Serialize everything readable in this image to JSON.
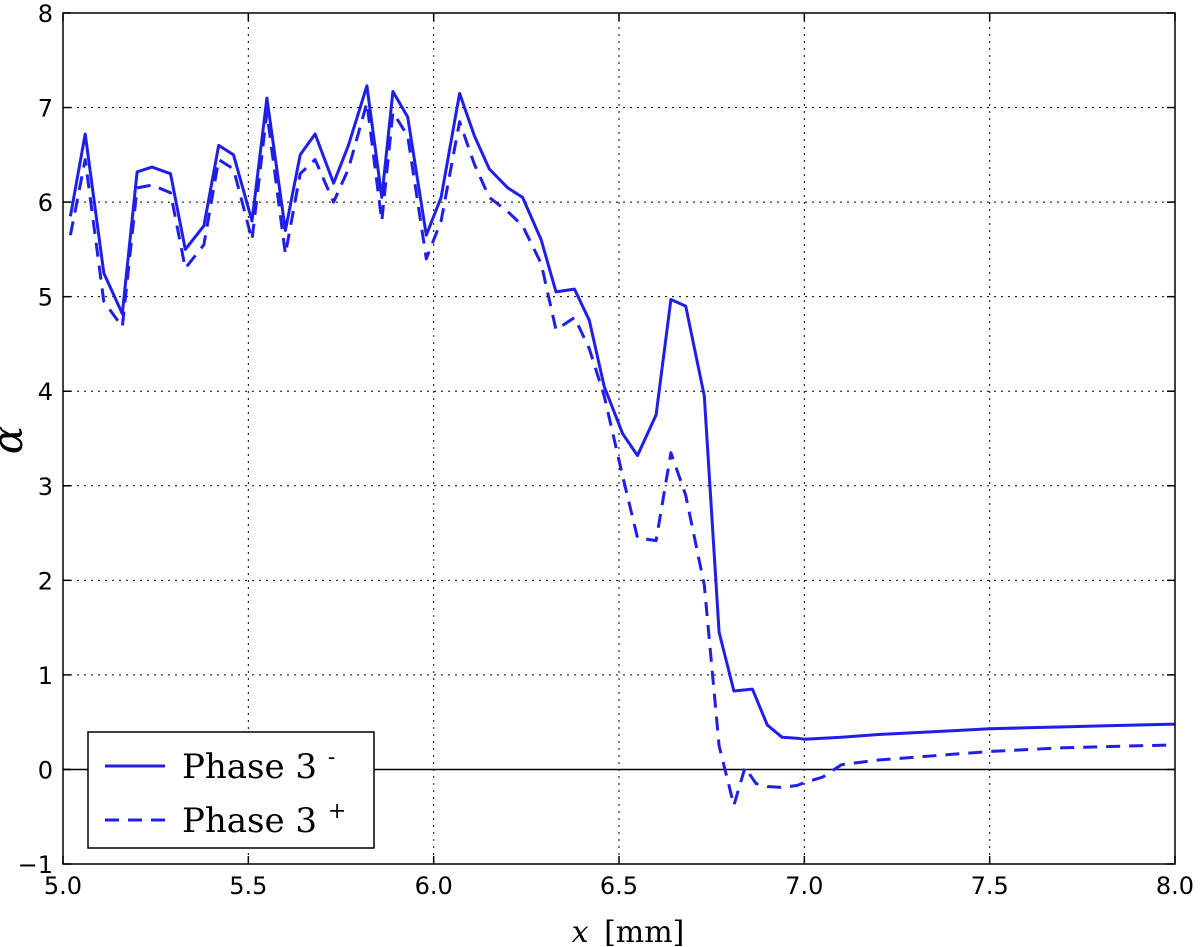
{
  "chart_data": {
    "type": "line",
    "xlabel_var": "x",
    "xlabel_unit": "[mm]",
    "ylabel": "α",
    "xlim": [
      5.0,
      8.0
    ],
    "ylim": [
      -1,
      8
    ],
    "xticks": [
      "5.0",
      "5.5",
      "6.0",
      "6.5",
      "7.0",
      "7.5",
      "8.0"
    ],
    "yticks": [
      "−1",
      "0",
      "1",
      "2",
      "3",
      "4",
      "5",
      "6",
      "7",
      "8"
    ],
    "grid": true,
    "legend_position": "lower-left",
    "reference_line_y": 0,
    "colors": {
      "series": "#1f1fe8",
      "axis": "#000000",
      "grid": "#000000"
    },
    "series": [
      {
        "name_base": "Phase 3",
        "name_sup": "-",
        "style": "solid",
        "x": [
          5.02,
          5.06,
          5.11,
          5.16,
          5.2,
          5.24,
          5.29,
          5.33,
          5.38,
          5.42,
          5.46,
          5.51,
          5.55,
          5.6,
          5.64,
          5.68,
          5.73,
          5.77,
          5.82,
          5.86,
          5.89,
          5.93,
          5.98,
          6.02,
          6.07,
          6.11,
          6.15,
          6.2,
          6.24,
          6.29,
          6.33,
          6.38,
          6.42,
          6.46,
          6.51,
          6.55,
          6.6,
          6.64,
          6.68,
          6.73,
          6.77,
          6.81,
          6.86,
          6.9,
          6.94,
          6.98,
          7.0,
          7.05,
          7.1,
          7.2,
          7.3,
          7.4,
          7.5,
          7.6,
          7.7,
          7.8,
          7.9,
          8.0
        ],
        "y": [
          5.85,
          6.72,
          5.25,
          4.82,
          6.32,
          6.37,
          6.3,
          5.5,
          5.75,
          6.6,
          6.5,
          5.8,
          7.1,
          5.7,
          6.5,
          6.72,
          6.2,
          6.6,
          7.23,
          6.05,
          7.17,
          6.9,
          5.65,
          6.05,
          7.15,
          6.7,
          6.35,
          6.15,
          6.05,
          5.6,
          5.05,
          5.08,
          4.75,
          4.05,
          3.55,
          3.32,
          3.75,
          4.97,
          4.9,
          3.95,
          1.45,
          0.83,
          0.85,
          0.47,
          0.34,
          0.33,
          0.32,
          0.33,
          0.34,
          0.37,
          0.39,
          0.41,
          0.43,
          0.44,
          0.45,
          0.46,
          0.47,
          0.48
        ]
      },
      {
        "name_base": "Phase 3",
        "name_sup": "+",
        "style": "dashed",
        "x": [
          5.02,
          5.06,
          5.11,
          5.16,
          5.2,
          5.24,
          5.29,
          5.33,
          5.38,
          5.42,
          5.46,
          5.51,
          5.55,
          5.6,
          5.64,
          5.68,
          5.73,
          5.77,
          5.82,
          5.86,
          5.89,
          5.93,
          5.98,
          6.02,
          6.07,
          6.11,
          6.15,
          6.2,
          6.24,
          6.29,
          6.33,
          6.38,
          6.42,
          6.46,
          6.51,
          6.55,
          6.6,
          6.64,
          6.68,
          6.73,
          6.77,
          6.81,
          6.84,
          6.87,
          6.9,
          6.94,
          6.98,
          7.0,
          7.05,
          7.1,
          7.2,
          7.3,
          7.4,
          7.5,
          7.6,
          7.7,
          7.8,
          7.9,
          8.0
        ],
        "y": [
          5.65,
          6.45,
          4.95,
          4.68,
          6.15,
          6.18,
          6.1,
          5.3,
          5.55,
          6.45,
          6.35,
          5.6,
          6.95,
          5.45,
          6.3,
          6.45,
          6.0,
          6.35,
          7.05,
          5.8,
          6.95,
          6.7,
          5.4,
          5.8,
          6.85,
          6.4,
          6.05,
          5.9,
          5.75,
          5.35,
          4.65,
          4.78,
          4.45,
          3.95,
          3.1,
          2.45,
          2.42,
          3.35,
          2.9,
          1.95,
          0.25,
          -0.38,
          0.02,
          -0.15,
          -0.18,
          -0.19,
          -0.17,
          -0.14,
          -0.08,
          0.05,
          0.1,
          0.13,
          0.16,
          0.19,
          0.21,
          0.23,
          0.24,
          0.25,
          0.26
        ]
      }
    ]
  }
}
